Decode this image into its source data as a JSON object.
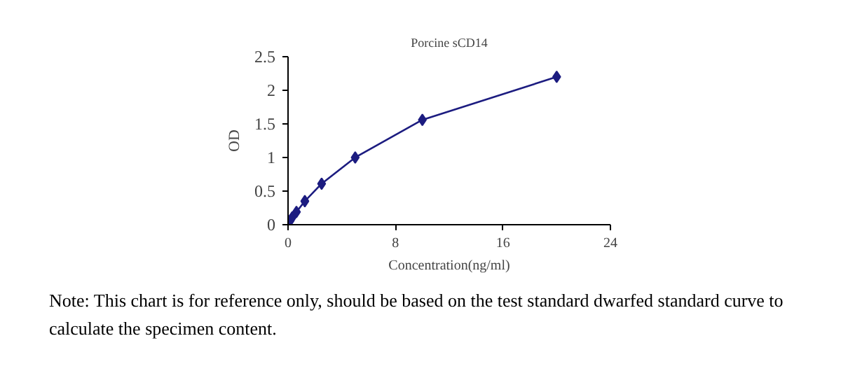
{
  "chart_data": {
    "type": "line",
    "title": "Porcine sCD14",
    "xlabel": "Concentration(ng/ml)",
    "ylabel": "OD",
    "x": [
      0,
      0.156,
      0.3125,
      0.625,
      1.25,
      2.5,
      5,
      10,
      20
    ],
    "series": [
      {
        "color": "#1c1c80",
        "values": [
          0.02,
          0.06,
          0.11,
          0.19,
          0.35,
          0.61,
          1.0,
          1.56,
          2.2
        ]
      }
    ],
    "xlim": [
      0,
      24
    ],
    "xticks": [
      0,
      8,
      16,
      24
    ],
    "ylim": [
      0,
      2.5
    ],
    "yticks": [
      0,
      0.5,
      1,
      1.5,
      2,
      2.5
    ],
    "marker": "diamond",
    "line_style": "solid",
    "grid": false,
    "annotations": [
      "Note: This chart is for reference only, should be based on the test standard dwarfed standard curve to calculate the specimen content."
    ]
  }
}
